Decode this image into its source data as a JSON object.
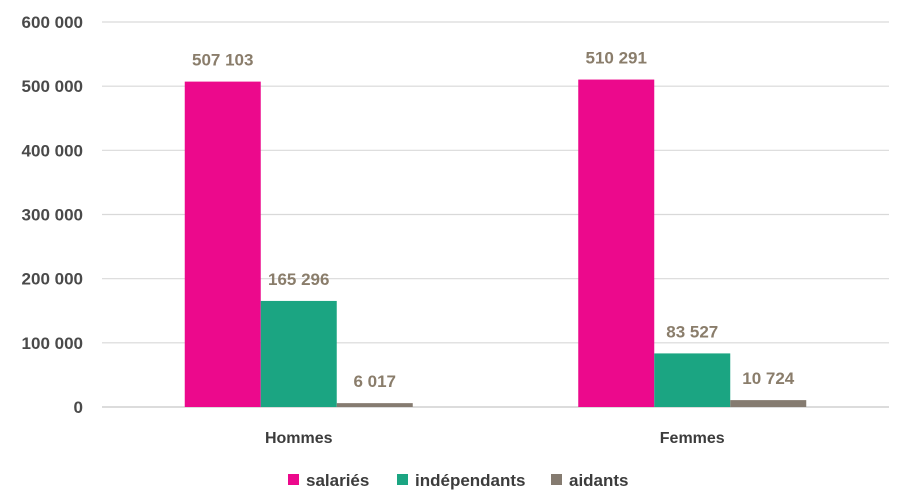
{
  "chart_data": {
    "type": "bar",
    "categories": [
      "Hommes",
      "Femmes"
    ],
    "series": [
      {
        "name": "salariés",
        "values": [
          507103,
          510291
        ],
        "labels": [
          "507 103",
          "510 291"
        ],
        "color": "#ec098c"
      },
      {
        "name": "indépendants",
        "values": [
          165296,
          83527
        ],
        "labels": [
          "165 296",
          "83 527"
        ],
        "color": "#1ba582"
      },
      {
        "name": "aidants",
        "values": [
          6017,
          10724
        ],
        "labels": [
          "6 017",
          "10 724"
        ],
        "color": "#857b70"
      }
    ],
    "yticks": [
      0,
      100000,
      200000,
      300000,
      400000,
      500000,
      600000
    ],
    "ytick_labels": [
      "0",
      "100 000",
      "200 000",
      "300 000",
      "400 000",
      "500 000",
      "600 000"
    ],
    "ylim": [
      0,
      600000
    ],
    "grid": true,
    "legend_position": "bottom",
    "title": "",
    "xlabel": "",
    "ylabel": ""
  }
}
